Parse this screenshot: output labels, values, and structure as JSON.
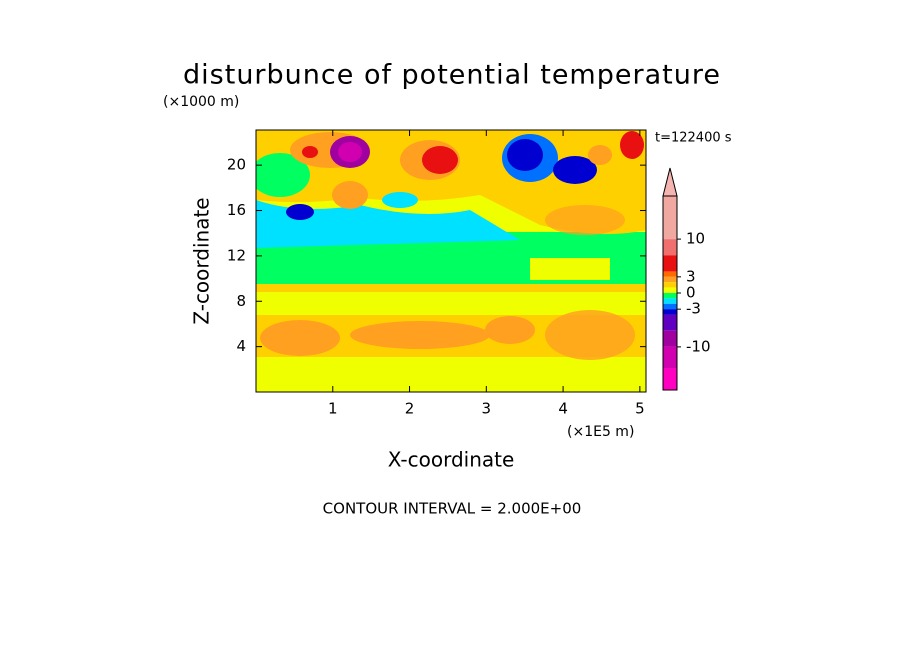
{
  "chart_data": {
    "type": "contour",
    "title": "disturbunce of potential temperature",
    "y_unit": "(×1000 m)",
    "x_unit": "(×1E5 m)",
    "time_label": "t=122400 s",
    "xlabel": "X-coordinate",
    "ylabel": "Z-coordinate",
    "footer": "CONTOUR INTERVAL = 2.000E+00",
    "xlim": [
      0,
      5.08
    ],
    "ylim": [
      0,
      23.1
    ],
    "xticks": [
      1,
      2,
      3,
      4,
      5
    ],
    "yticks": [
      4,
      8,
      12,
      16,
      20
    ],
    "colorbar": {
      "levels": [
        18,
        10,
        7,
        4,
        3,
        2,
        1,
        0,
        -1,
        -2,
        -3,
        -4,
        -7,
        -10,
        -14,
        -18
      ],
      "colors": [
        "#f0a8a0",
        "#f07070",
        "#e81010",
        "#ff6a00",
        "#ffa020",
        "#ffd000",
        "#f0ff00",
        "#00ff60",
        "#00e0ff",
        "#0070ff",
        "#0000d0",
        "#6000c0",
        "#a000a0",
        "#d000b0",
        "#ff00c0"
      ],
      "extend_color": "#f4b4b0",
      "ticks": [
        10,
        3,
        0,
        -3,
        -10
      ]
    }
  }
}
